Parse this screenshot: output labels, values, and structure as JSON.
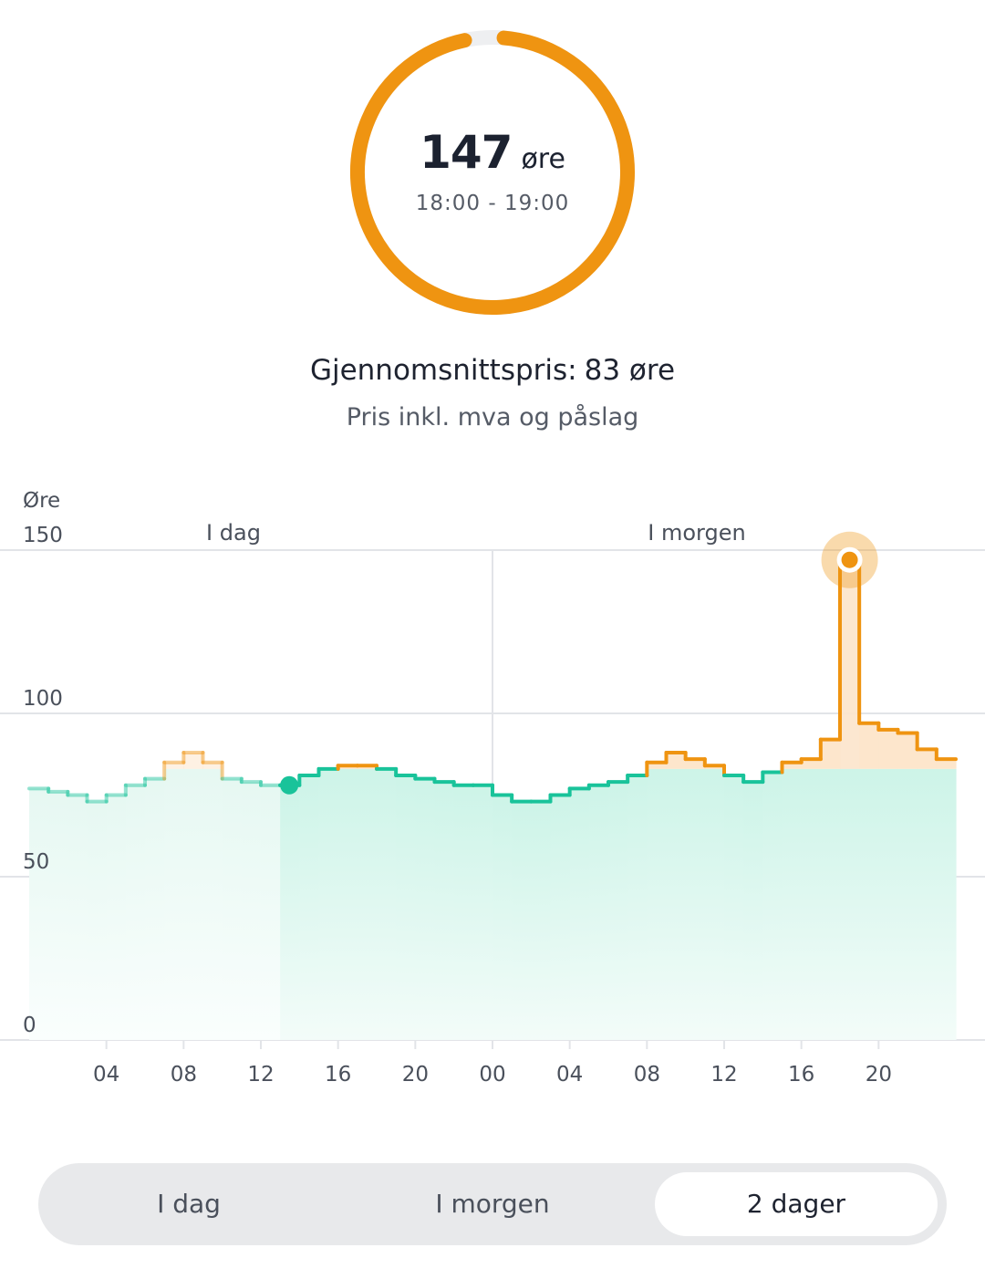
{
  "current_price": {
    "value": "147",
    "unit": "øre",
    "time_range": "18:00 - 19:00",
    "fraction": 0.98
  },
  "average": {
    "label": "Gjennomsnittspris:",
    "value": "83 øre"
  },
  "subtitle": "Pris inkl. mva og påslag",
  "chart_data": {
    "type": "line",
    "ylabel": "Øre",
    "ylim": [
      0,
      150
    ],
    "yticks": [
      "150",
      "100",
      "50",
      "0"
    ],
    "xticks": [
      "04",
      "08",
      "12",
      "16",
      "20",
      "00",
      "04",
      "08",
      "12",
      "16",
      "20"
    ],
    "day_labels": [
      "I dag",
      "I morgen"
    ],
    "average": 83,
    "current_hour_index": 13,
    "selected_hour_index": 42,
    "series": [
      {
        "values": [
          77,
          76,
          75,
          73,
          75,
          78,
          80,
          85,
          88,
          85,
          80,
          79,
          78,
          78,
          81,
          83,
          84,
          84,
          83,
          81,
          80,
          79,
          78,
          78,
          75,
          73,
          73,
          75,
          77,
          78,
          79,
          81,
          85,
          88,
          86,
          84,
          81,
          79,
          82,
          85,
          86,
          92,
          147,
          97,
          95,
          94,
          89,
          86
        ]
      }
    ],
    "colors": {
      "below_avg": "#19c39a",
      "above_avg": "#ef9411",
      "below_fill": "#d6f6ee",
      "above_fill": "#fde6cc",
      "grid": "#e2e4e8"
    }
  },
  "period_tabs": {
    "items": [
      "I dag",
      "I morgen",
      "2 dager"
    ],
    "active_index": 2
  },
  "gauge_colors": {
    "track": "#eeeff1",
    "fill": "#ef9411"
  }
}
